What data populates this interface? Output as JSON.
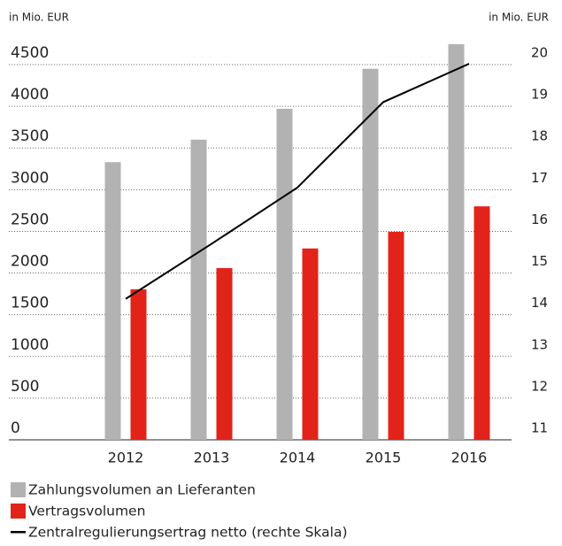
{
  "chart_data": {
    "type": "bar",
    "y_axis_label": "in Mio. EUR",
    "y2_axis_label": "in Mio. EUR",
    "categories": [
      "2012",
      "2013",
      "2014",
      "2015",
      "2016"
    ],
    "series": [
      {
        "name": "Zahlungsvolumen an Lieferanten",
        "color": "#b2b2b2",
        "type": "bar",
        "values": [
          3330,
          3600,
          3970,
          4450,
          4745
        ]
      },
      {
        "name": "Vertragsvolumen",
        "color": "#e2231a",
        "type": "bar",
        "values": [
          1805,
          2060,
          2295,
          2495,
          2800
        ]
      },
      {
        "name": "Zentralregulierungsertrag netto (rechte Skala)",
        "color": "#000000",
        "type": "line",
        "axis": "y2",
        "values": [
          14.38,
          15.7,
          17.05,
          19.1,
          20.02
        ]
      }
    ],
    "ylim": [
      0,
      4500
    ],
    "yticks": [
      0,
      500,
      1000,
      1500,
      2000,
      2500,
      3000,
      3500,
      4000,
      4500
    ],
    "y2lim": [
      11,
      20
    ],
    "y2ticks": [
      11,
      12,
      13,
      14,
      15,
      16,
      17,
      18,
      19,
      20
    ],
    "grid": true,
    "legend": "bottom"
  }
}
